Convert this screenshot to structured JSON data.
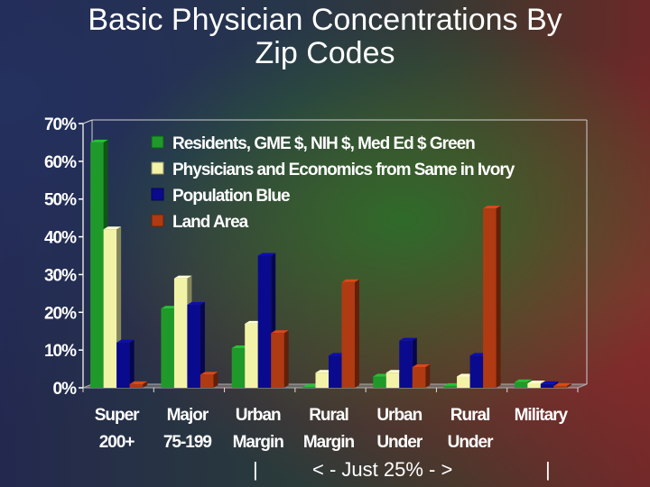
{
  "slide": {
    "title_line1": "Basic Physician Concentrations By",
    "title_line2": "Zip Codes",
    "footer_left": "|",
    "footer_note": "< - Just 25% - >",
    "footer_right": "|"
  },
  "chart_data": {
    "type": "bar",
    "categories": [
      [
        "Super",
        "200+"
      ],
      [
        "Major",
        "75-199"
      ],
      [
        "Urban",
        "Margin"
      ],
      [
        "Rural",
        "Margin"
      ],
      [
        "Urban",
        "Under"
      ],
      [
        "Rural",
        "Under"
      ],
      [
        "Military",
        ""
      ]
    ],
    "series": [
      {
        "name": "Residents, GME $, NIH $, Med Ed $ Green",
        "color": "#1f9a2a",
        "values": [
          65,
          21,
          10.5,
          0.2,
          3,
          0.5,
          1.5
        ]
      },
      {
        "name": "Physicians and Economics from Same in Ivory",
        "color": "#f3f3a8",
        "values": [
          42,
          29,
          17,
          4,
          4,
          3,
          1.2
        ]
      },
      {
        "name": "Population Blue",
        "color": "#0a0a8e",
        "values": [
          12,
          22,
          35,
          8.5,
          12.5,
          8.5,
          1
        ]
      },
      {
        "name": "Land Area",
        "color": "#b03a12",
        "values": [
          1,
          3.5,
          14.5,
          28,
          5.5,
          47.5,
          0.5
        ]
      }
    ],
    "yticks": [
      "0%",
      "10%",
      "20%",
      "30%",
      "40%",
      "50%",
      "60%",
      "70%"
    ],
    "ylim": [
      0,
      70
    ],
    "legend_position": "top-right",
    "grid": false
  }
}
